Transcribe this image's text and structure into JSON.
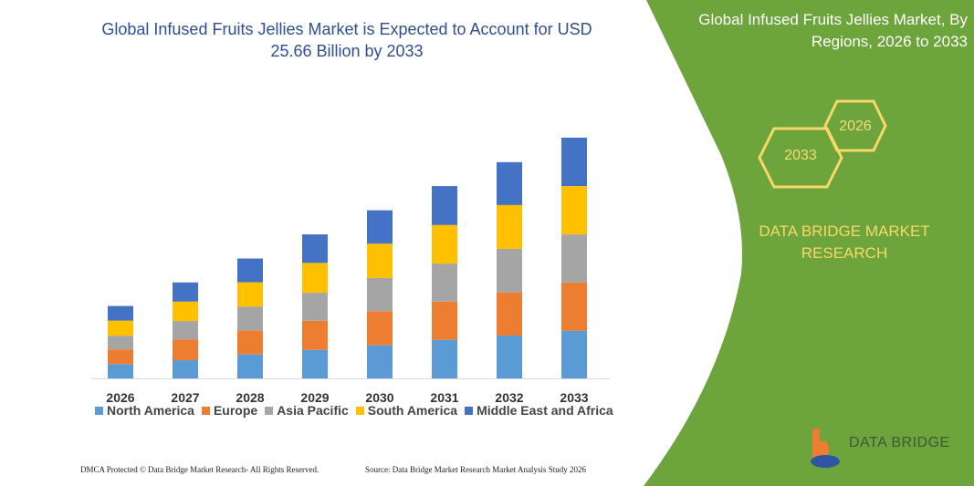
{
  "header": {
    "title": "Global Infused Fruits Jellies Market is Expected to Account for USD 25.66 Billion by 2033",
    "right_title": "Global Infused Fruits Jellies Market, By Regions, 2026 to 2033"
  },
  "hexagons": {
    "start": "2026",
    "end": "2033"
  },
  "brand": {
    "name": "DATA BRIDGE MARKET RESEARCH",
    "logo_text": "DATA BRIDGE"
  },
  "footer": {
    "left": "DMCA Protected © Data Bridge Market Research-  All Rights Reserved.",
    "right": "Source: Data Bridge Market Research  Market Analysis Study 2026"
  },
  "colors": {
    "green_panel": "#6da43b",
    "accent_yellow": "#f6d96a",
    "title_blue": "#2f4f8f"
  },
  "chart_data": {
    "type": "bar",
    "stacked": true,
    "categories": [
      "2026",
      "2027",
      "2028",
      "2029",
      "2030",
      "2031",
      "2032",
      "2033"
    ],
    "series": [
      {
        "name": "North America",
        "color": "#5b9bd5",
        "values": [
          1.53,
          1.94,
          2.56,
          3.04,
          3.53,
          4.11,
          4.57,
          5.08
        ]
      },
      {
        "name": "Europe",
        "color": "#ed7d31",
        "values": [
          1.56,
          2.21,
          2.53,
          3.11,
          3.64,
          4.08,
          4.6,
          5.15
        ]
      },
      {
        "name": "Asia Pacific",
        "color": "#a5a5a5",
        "values": [
          1.46,
          1.97,
          2.57,
          2.98,
          3.53,
          4.05,
          4.64,
          5.12
        ]
      },
      {
        "name": "South America",
        "color": "#ffc000",
        "values": [
          1.61,
          2.07,
          2.59,
          3.18,
          3.66,
          4.11,
          4.67,
          5.15
        ]
      },
      {
        "name": "Middle East and Africa",
        "color": "#4472c4",
        "values": [
          1.56,
          2.04,
          2.53,
          3.04,
          3.56,
          4.15,
          4.57,
          5.16
        ]
      }
    ],
    "title": "",
    "xlabel": "",
    "ylabel": "",
    "ylim": [
      0,
      25.66
    ],
    "grid": false,
    "legend": "bottom"
  }
}
